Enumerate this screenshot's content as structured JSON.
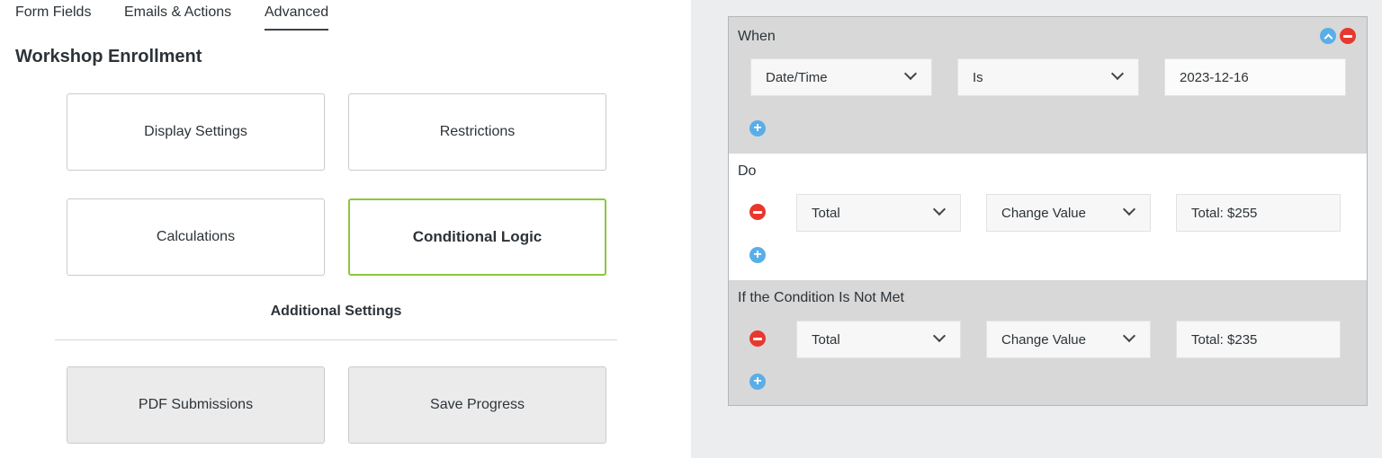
{
  "tabs": [
    {
      "label": "Form Fields"
    },
    {
      "label": "Emails & Actions"
    },
    {
      "label": "Advanced",
      "active": true
    }
  ],
  "form_title": "Workshop Enrollment",
  "cards": {
    "display": "Display Settings",
    "restrictions": "Restrictions",
    "calculations": "Calculations",
    "conditional": "Conditional Logic",
    "pdf": "PDF Submissions",
    "save": "Save Progress"
  },
  "additional_settings": "Additional Settings",
  "logic": {
    "when": {
      "label": "When",
      "field": "Date/Time",
      "operator": "Is",
      "value": "2023-12-16"
    },
    "do": {
      "label": "Do",
      "field": "Total",
      "action": "Change Value",
      "value": "Total: $255"
    },
    "else": {
      "label": "If the Condition Is Not Met",
      "field": "Total",
      "action": "Change Value",
      "value": "Total: $235"
    }
  },
  "colors": {
    "selected_border": "#8cc63f",
    "add_icon": "#5aaee8",
    "remove_icon": "#e8382e",
    "section_gray": "#d8d8d8"
  }
}
